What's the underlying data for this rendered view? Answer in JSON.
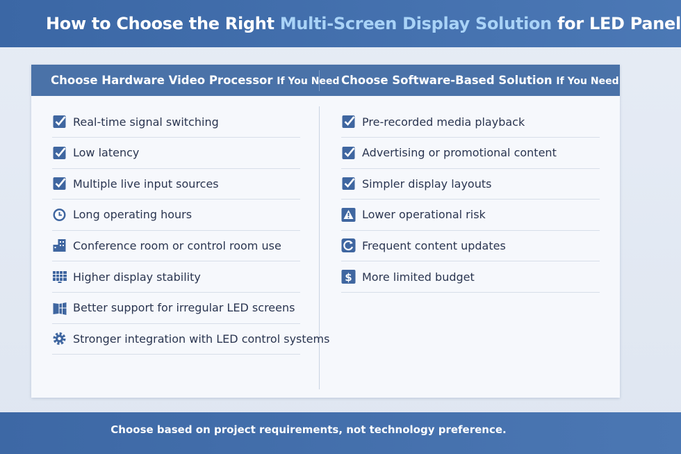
{
  "header": {
    "title": [
      "How to Choose the Right",
      "Multi-Screen Display Solution",
      "for LED Panels"
    ]
  },
  "columns": [
    {
      "heading": "Choose Hardware Video Processor",
      "heading_suffix": "If You Need",
      "items": [
        "Real-time signal switching",
        "Low latency",
        "Multiple live input sources",
        "Long operating hours",
        "Conference room or control room use",
        "Higher display stability",
        "Better support for irregular LED screens",
        "Stronger integration with LED control systems"
      ]
    },
    {
      "heading": "Choose Software-Based Solution",
      "heading_suffix": "If You Need",
      "items": [
        "Pre-recorded media playback",
        "Advertising or promotional content",
        "Simpler display layouts",
        "Lower operational risk",
        "Frequent content updates",
        "More limited budget"
      ]
    }
  ],
  "footer": {
    "text": "Choose based on project requirements, not technology preference."
  }
}
